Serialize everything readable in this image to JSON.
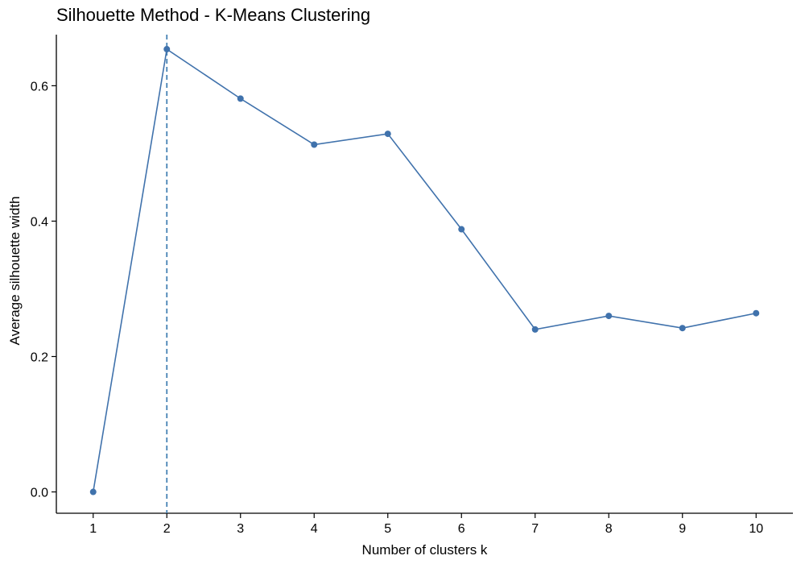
{
  "chart_data": {
    "type": "line",
    "title": "Silhouette Method - K-Means Clustering",
    "xlabel": "Number of clusters k",
    "ylabel": "Average silhouette width",
    "x": [
      1,
      2,
      3,
      4,
      5,
      6,
      7,
      8,
      9,
      10
    ],
    "x_tick_labels": [
      "1",
      "2",
      "3",
      "4",
      "5",
      "6",
      "7",
      "8",
      "9",
      "10"
    ],
    "y": [
      0.0,
      0.654,
      0.581,
      0.513,
      0.529,
      0.388,
      0.24,
      0.26,
      0.242,
      0.264
    ],
    "y_ticks": [
      0.0,
      0.2,
      0.4,
      0.6
    ],
    "y_tick_labels": [
      "0.0",
      "0.2",
      "0.4",
      "0.6"
    ],
    "xlim": [
      0.5,
      10.5
    ],
    "ylim": [
      -0.0315,
      0.685
    ],
    "optimal_k": 2,
    "grid": false,
    "legend": "none",
    "colors": {
      "line": "#4072AC",
      "reference_line": "#4682B4",
      "axis": "#000000"
    }
  }
}
